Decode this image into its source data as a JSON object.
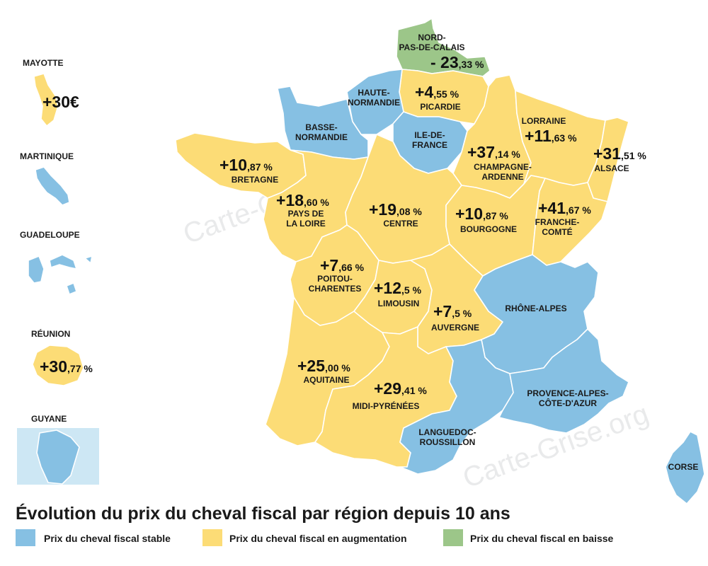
{
  "colors": {
    "stable": "#86c0e3",
    "augmentation": "#fcdc76",
    "baisse": "#9cc689",
    "guyane_light": "#cde7f4"
  },
  "title": "Évolution du prix du cheval fiscal par région depuis 10 ans",
  "legend": [
    {
      "label": "Prix du cheval fiscal stable",
      "color": "#86c0e3"
    },
    {
      "label": "Prix du cheval fiscal en augmentation",
      "color": "#fcdc76"
    },
    {
      "label": "Prix du cheval fiscal en baisse",
      "color": "#9cc689"
    }
  ],
  "watermarks": [
    "Carte-Grise.org",
    "Carte-Grise.org"
  ],
  "regions": {
    "nord_pas_de_calais": {
      "name": [
        "NORD-",
        "PAS-DE-CALAIS"
      ],
      "value_big": "- 23",
      "value_small": ",33 %",
      "status": "baisse"
    },
    "picardie": {
      "name": [
        "PICARDIE"
      ],
      "value_big": "+4",
      "value_small": ",55 %",
      "status": "augmentation"
    },
    "haute_normandie": {
      "name": [
        "HAUTE-",
        "NORMANDIE"
      ],
      "status": "stable"
    },
    "basse_normandie": {
      "name": [
        "BASSE-",
        "NORMANDIE"
      ],
      "status": "stable"
    },
    "ile_de_france": {
      "name": [
        "ILE-DE-",
        "FRANCE"
      ],
      "status": "stable"
    },
    "lorraine": {
      "name": [
        "LORRAINE"
      ],
      "value_big": "+11",
      "value_small": ",63 %",
      "status": "augmentation"
    },
    "alsace": {
      "name": [
        "ALSACE"
      ],
      "value_big": "+31",
      "value_small": ",51 %",
      "status": "augmentation"
    },
    "champagne_ardenne": {
      "name": [
        "CHAMPAGNE-",
        "ARDENNE"
      ],
      "value_big": "+37",
      "value_small": ",14 %",
      "status": "augmentation"
    },
    "bretagne": {
      "name": [
        "BRETAGNE"
      ],
      "value_big": "+10",
      "value_small": ",87 %",
      "status": "augmentation"
    },
    "pays_de_la_loire": {
      "name": [
        "PAYS DE",
        "LA LOIRE"
      ],
      "value_big": "+18",
      "value_small": ",60 %",
      "status": "augmentation"
    },
    "centre": {
      "name": [
        "CENTRE"
      ],
      "value_big": "+19",
      "value_small": ",08 %",
      "status": "augmentation"
    },
    "bourgogne": {
      "name": [
        "BOURGOGNE"
      ],
      "value_big": "+10",
      "value_small": ",87 %",
      "status": "augmentation"
    },
    "franche_comte": {
      "name": [
        "FRANCHE-",
        "COMTÉ"
      ],
      "value_big": "+41",
      "value_small": ",67 %",
      "status": "augmentation"
    },
    "poitou_charentes": {
      "name": [
        "POITOU-",
        "CHARENTES"
      ],
      "value_big": "+7",
      "value_small": ",66 %",
      "status": "augmentation"
    },
    "limousin": {
      "name": [
        "LIMOUSIN"
      ],
      "value_big": "+12",
      "value_small": ",5 %",
      "status": "augmentation"
    },
    "auvergne": {
      "name": [
        "AUVERGNE"
      ],
      "value_big": "+7",
      "value_small": ",5 %",
      "status": "augmentation"
    },
    "rhone_alpes": {
      "name": [
        "RHÔNE-ALPES"
      ],
      "status": "stable"
    },
    "aquitaine": {
      "name": [
        "AQUITAINE"
      ],
      "value_big": "+25",
      "value_small": ",00 %",
      "status": "augmentation"
    },
    "midi_pyrenees": {
      "name": [
        "MIDI-PYRÉNÉES"
      ],
      "value_big": "+29",
      "value_small": ",41 %",
      "status": "augmentation"
    },
    "paca": {
      "name": [
        "PROVENCE-ALPES-",
        "CÔTE-D'AZUR"
      ],
      "status": "stable"
    },
    "languedoc_roussillon": {
      "name": [
        "LANGUEDOC-",
        "ROUSSILLON"
      ],
      "status": "stable"
    },
    "corse": {
      "name": [
        "CORSE"
      ],
      "status": "stable"
    }
  },
  "overseas": {
    "mayotte": {
      "name": "MAYOTTE",
      "value_big": "+30€",
      "status": "augmentation"
    },
    "martinique": {
      "name": "MARTINIQUE",
      "status": "stable"
    },
    "guadeloupe": {
      "name": "GUADELOUPE",
      "status": "stable"
    },
    "reunion": {
      "name": "RÉUNION",
      "value_big": "+30",
      "value_small": ",77 %",
      "status": "augmentation"
    },
    "guyane": {
      "name": "GUYANE",
      "status": "stable"
    }
  }
}
